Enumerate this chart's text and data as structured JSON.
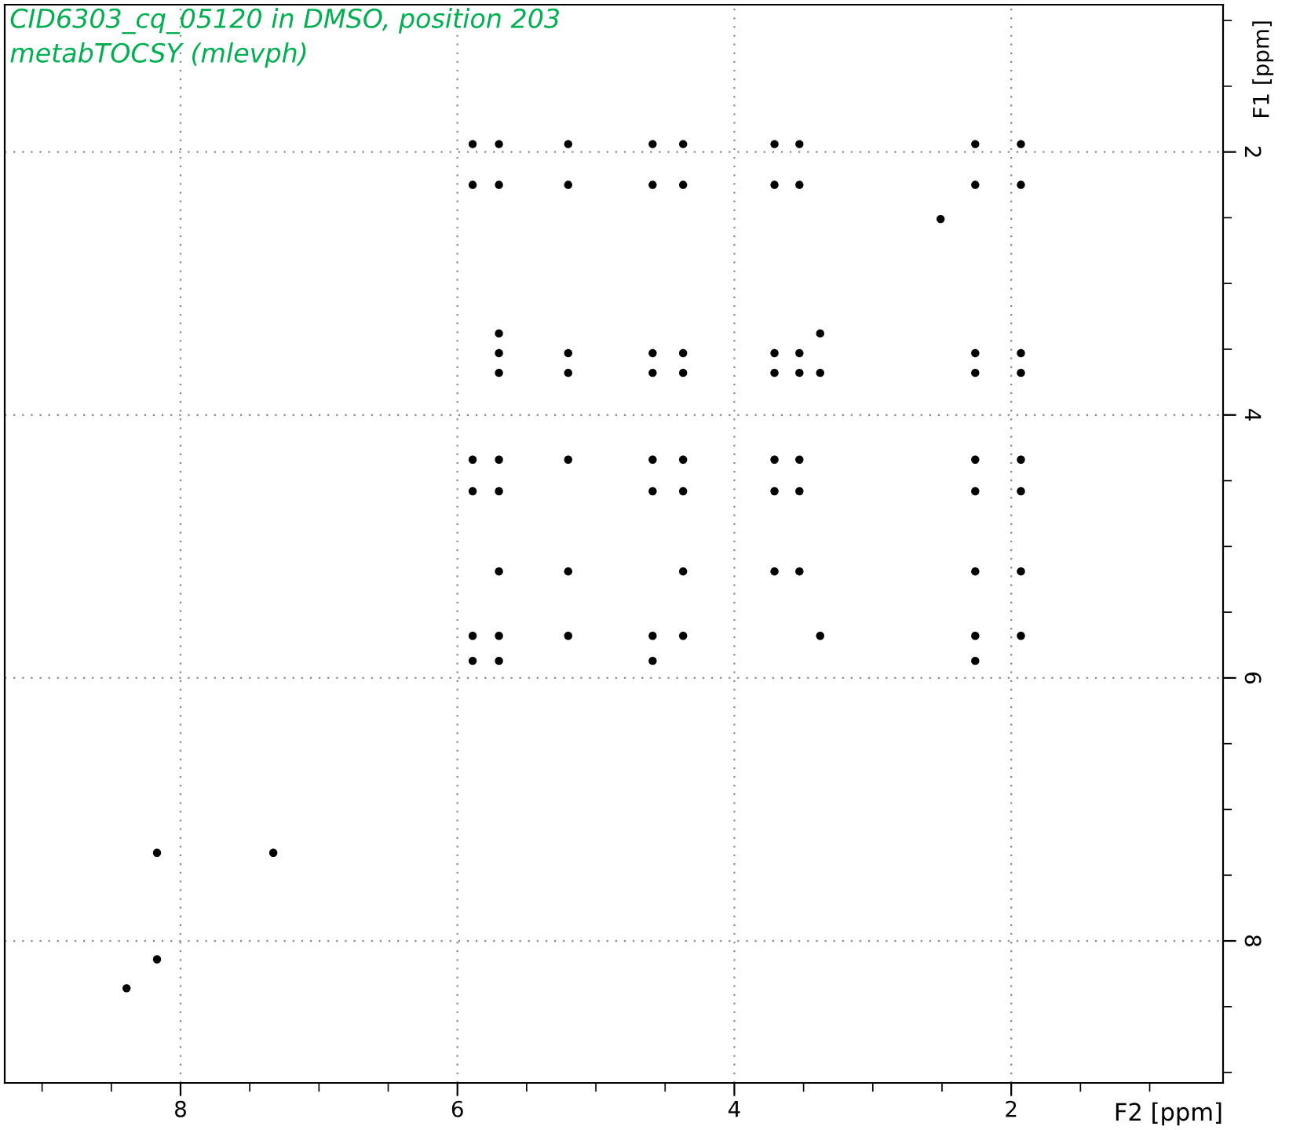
{
  "chart_data": {
    "type": "scatter",
    "title": "CID6303_cq_05120 in DMSO, position 203",
    "subtitle": "metabTOCSY (mlevph)",
    "xlabel": "F2 [ppm]",
    "ylabel": "F1 [ppm]",
    "series": [
      {
        "color": "#000000",
        "x": [
          5.89,
          5.7,
          5.2,
          4.59,
          4.37,
          3.71,
          3.53,
          2.26,
          1.93,
          5.89,
          5.7,
          5.2,
          4.59,
          4.37,
          3.71,
          3.53,
          2.26,
          1.93,
          2.51,
          5.7,
          3.38,
          5.7,
          5.2,
          4.59,
          4.37,
          3.71,
          3.53,
          2.26,
          1.93,
          5.7,
          5.2,
          4.59,
          4.37,
          3.71,
          3.53,
          3.38,
          2.26,
          1.93,
          5.89,
          5.7,
          5.2,
          4.59,
          4.37,
          3.71,
          3.53,
          2.26,
          1.93,
          5.89,
          5.7,
          4.59,
          4.37,
          3.71,
          3.53,
          2.26,
          1.93,
          5.7,
          5.2,
          4.37,
          3.71,
          3.53,
          2.26,
          1.93,
          5.89,
          5.7,
          5.2,
          4.59,
          4.37,
          3.38,
          2.26,
          1.93,
          5.89,
          5.7,
          4.59,
          2.26,
          8.17,
          7.33,
          8.17,
          8.39
        ],
        "values": [
          1.94,
          1.94,
          1.94,
          1.94,
          1.94,
          1.94,
          1.94,
          1.94,
          1.94,
          2.25,
          2.25,
          2.25,
          2.25,
          2.25,
          2.25,
          2.25,
          2.25,
          2.25,
          2.51,
          3.38,
          3.38,
          3.53,
          3.53,
          3.53,
          3.53,
          3.53,
          3.53,
          3.53,
          3.53,
          3.68,
          3.68,
          3.68,
          3.68,
          3.68,
          3.68,
          3.68,
          3.68,
          3.68,
          4.34,
          4.34,
          4.34,
          4.34,
          4.34,
          4.34,
          4.34,
          4.34,
          4.34,
          4.58,
          4.58,
          4.58,
          4.58,
          4.58,
          4.58,
          4.58,
          4.58,
          5.19,
          5.19,
          5.19,
          5.19,
          5.19,
          5.19,
          5.19,
          5.68,
          5.68,
          5.68,
          5.68,
          5.68,
          5.68,
          5.68,
          5.68,
          5.87,
          5.87,
          5.87,
          5.87,
          7.33,
          7.33,
          8.14,
          8.36
        ]
      }
    ],
    "xlim": [
      9.27,
      0.47
    ],
    "ylim": [
      9.08,
      0.88
    ],
    "xticks": [
      {
        "value": 9.0,
        "label": null
      },
      {
        "value": 8.5,
        "label": null
      },
      8,
      {
        "value": 7.5,
        "label": null
      },
      {
        "value": 7.0,
        "label": null
      },
      {
        "value": 6.5,
        "label": null
      },
      6,
      {
        "value": 5.5,
        "label": null
      },
      {
        "value": 5.0,
        "label": null
      },
      {
        "value": 4.5,
        "label": null
      },
      4,
      {
        "value": 3.5,
        "label": null
      },
      {
        "value": 3.0,
        "label": null
      },
      {
        "value": 2.5,
        "label": null
      },
      2,
      {
        "value": 1.5,
        "label": null
      },
      {
        "value": 1.0,
        "label": null
      }
    ],
    "yticks": [
      {
        "value": 1.0,
        "label": null
      },
      {
        "value": 1.5,
        "label": null
      },
      2,
      {
        "value": 2.5,
        "label": null
      },
      {
        "value": 3.0,
        "label": null
      },
      {
        "value": 3.5,
        "label": null
      },
      4,
      {
        "value": 4.5,
        "label": null
      },
      {
        "value": 5.0,
        "label": null
      },
      {
        "value": 5.5,
        "label": null
      },
      6,
      {
        "value": 6.5,
        "label": null
      },
      {
        "value": 7.0,
        "label": null
      },
      {
        "value": 7.5,
        "label": null
      },
      8,
      {
        "value": 8.5,
        "label": null
      },
      {
        "value": 9.0,
        "label": null
      }
    ],
    "grid": true,
    "marker": "circle"
  }
}
